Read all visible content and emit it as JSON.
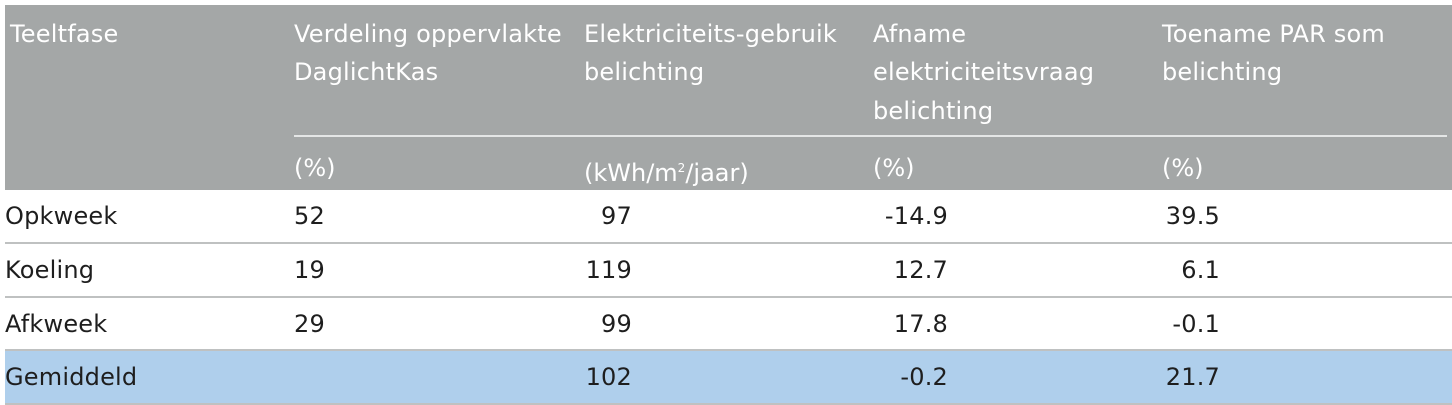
{
  "headers": {
    "col1": "Teeltfase",
    "col2_line1": "Verdeling oppervlakte",
    "col2_line2": "DaglichtKas",
    "col3_line1": "Elektriciteits-gebruik",
    "col3_line2": "belichting",
    "col4_line1": "Afname",
    "col4_line2": "elektriciteitsvraag",
    "col4_line3": "belichting",
    "col5_line1": "Toename PAR som",
    "col5_line2": "belichting"
  },
  "units": {
    "col2": "(%)",
    "col3_pre": "(kWh/m",
    "col3_sup": "2",
    "col3_post": "/jaar)",
    "col4": "(%)",
    "col5": "(%)"
  },
  "rows": [
    {
      "fase": "Opkweek",
      "verdeling": "52",
      "gebruik": "97",
      "afname": "-14.9",
      "toename": "39.5"
    },
    {
      "fase": "Koeling",
      "verdeling": "19",
      "gebruik": "119",
      "afname": "12.7",
      "toename": "6.1"
    },
    {
      "fase": "Afkweek",
      "verdeling": "29",
      "gebruik": "99",
      "afname": "17.8",
      "toename": "-0.1"
    }
  ],
  "total": {
    "fase": "Gemiddeld",
    "verdeling": "",
    "gebruik": "102",
    "afname": "-0.2",
    "toename": "21.7"
  },
  "colors": {
    "header_bg": "#a4a7a7",
    "total_bg": "#afcfec",
    "text": "#1e1e1e"
  }
}
